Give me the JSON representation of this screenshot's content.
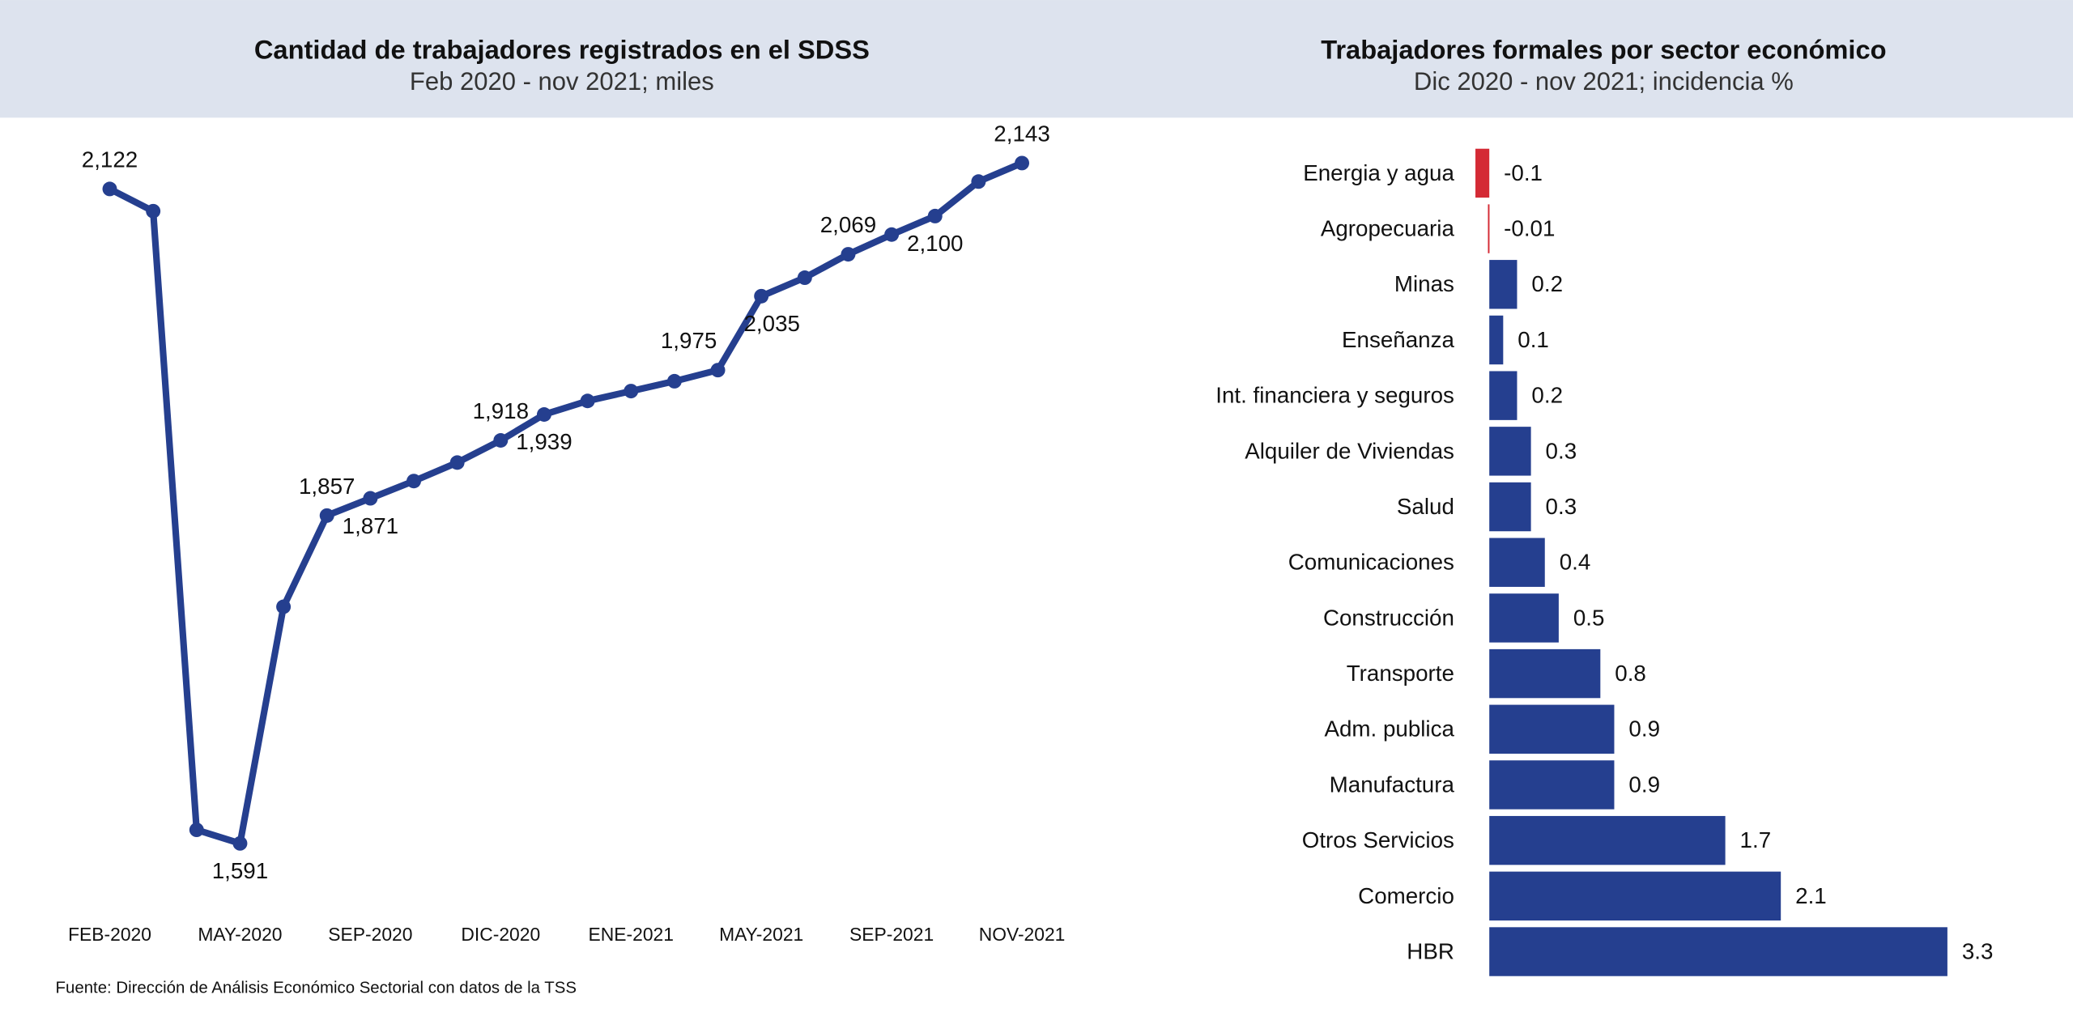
{
  "chart_data": [
    {
      "type": "line",
      "title": "Cantidad de trabajadores registrados en el SDSS",
      "subtitle": "Feb 2020 - nov 2021; miles",
      "categories": [
        "FEB-2020",
        null,
        null,
        "MAY-2020",
        null,
        null,
        "SEP-2020",
        null,
        null,
        "DIC-2020",
        null,
        null,
        "ENE-2021",
        null,
        null,
        "MAY-2021",
        null,
        null,
        "SEP-2021",
        null,
        null,
        "NOV-2021"
      ],
      "series": [
        {
          "name": "Trabajadores",
          "color": "#253f8f",
          "values": [
            2122,
            2104,
            1602,
            1591,
            1783,
            1857,
            1871,
            1885,
            1900,
            1918,
            1939,
            1950,
            1958,
            1966,
            1975,
            2035,
            2050,
            2069,
            2085,
            2100,
            2128,
            2143
          ],
          "value_labels": [
            "2,122",
            null,
            null,
            "1,591",
            null,
            "1,857",
            "1,871",
            null,
            null,
            "1,918",
            "1,939",
            null,
            null,
            null,
            "1,975",
            "2,035",
            null,
            "2,069",
            null,
            "2,100",
            null,
            "2,143"
          ]
        }
      ],
      "ylim": [
        1560,
        2160
      ]
    },
    {
      "type": "hbar",
      "title": "Trabajadores formales por sector económico",
      "subtitle": "Dic 2020 - nov 2021; incidencia %",
      "categories": [
        "Energia y agua",
        "Agropecuaria",
        "Minas",
        "Enseñanza",
        "Int. financiera y seguros",
        "Alquiler de Viviendas",
        "Salud",
        "Comunicaciones",
        "Construcción",
        "Transporte",
        "Adm. publica",
        "Manufactura",
        "Otros Servicios",
        "Comercio",
        "HBR"
      ],
      "values": [
        -0.1,
        -0.01,
        0.2,
        0.1,
        0.2,
        0.3,
        0.3,
        0.4,
        0.5,
        0.8,
        0.9,
        0.9,
        1.7,
        2.1,
        3.3
      ],
      "color": "#253f8f",
      "negative_color": "#d42a35",
      "xlim": [
        -0.1,
        3.3
      ]
    }
  ],
  "footnote": "Fuente: Dirección de Análisis Económico Sectorial con datos de la TSS"
}
